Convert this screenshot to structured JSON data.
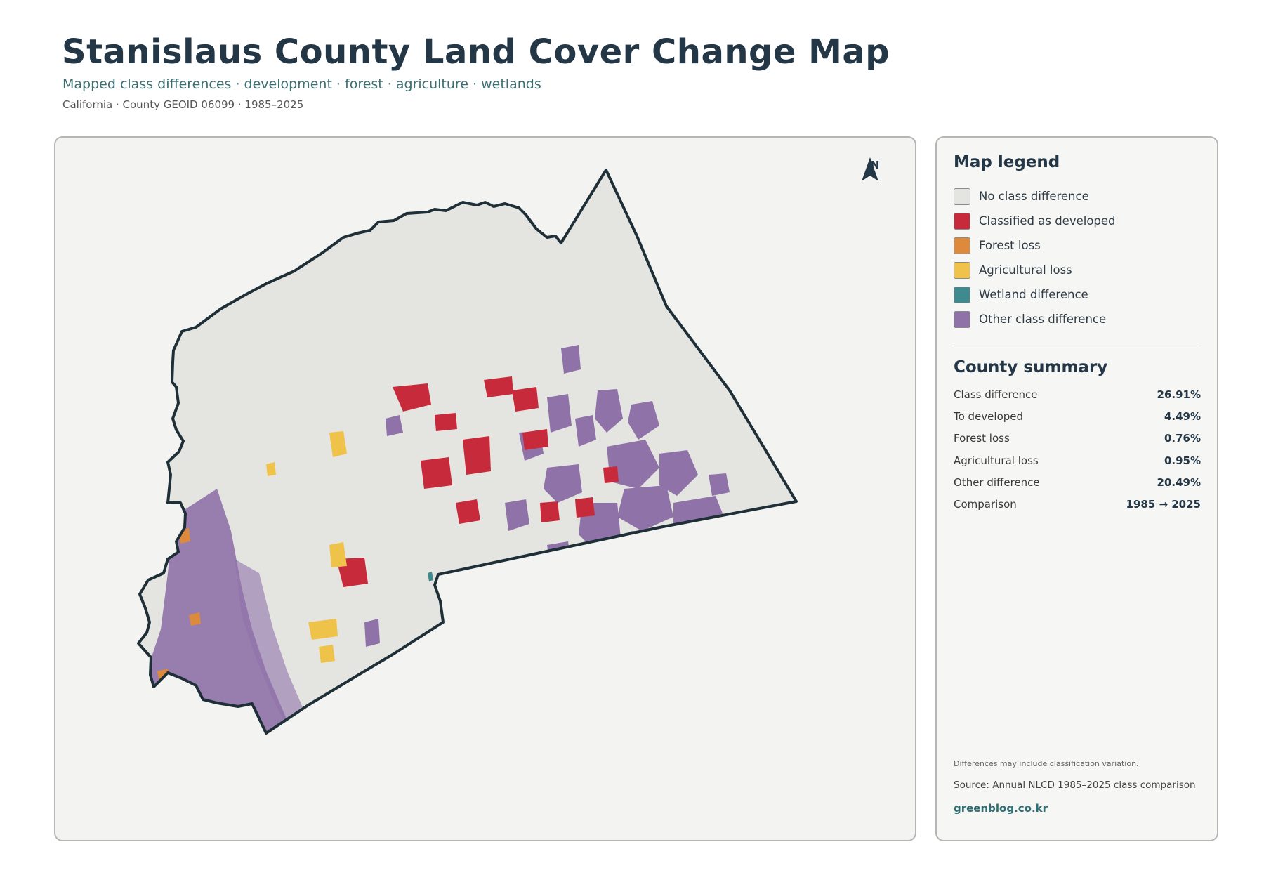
{
  "header": {
    "title": "Stanislaus County Land Cover Change Map",
    "subtitle": "Mapped class differences · development · forest · agriculture · wetlands",
    "meta": "California · County GEOID 06099 · 1985–2025"
  },
  "map": {
    "north_label": "N",
    "colors": {
      "no_change": "#e4e5e1",
      "developed": "#c72a3a",
      "forest_loss": "#dd8a3c",
      "agricultural_loss": "#efc24a",
      "wetland": "#3f8a8f",
      "other": "#8f72a8",
      "outline": "#1f2f38"
    }
  },
  "legend": {
    "title": "Map legend",
    "items": [
      {
        "label": "No class difference",
        "color": "#e4e5e1"
      },
      {
        "label": "Classified as developed",
        "color": "#c72a3a"
      },
      {
        "label": "Forest loss",
        "color": "#dd8a3c"
      },
      {
        "label": "Agricultural loss",
        "color": "#efc24a"
      },
      {
        "label": "Wetland difference",
        "color": "#3f8a8f"
      },
      {
        "label": "Other class difference",
        "color": "#8f72a8"
      }
    ]
  },
  "summary": {
    "title": "County summary",
    "rows": [
      {
        "label": "Class difference",
        "value": "26.91%"
      },
      {
        "label": "To developed",
        "value": "4.49%"
      },
      {
        "label": "Forest loss",
        "value": "0.76%"
      },
      {
        "label": "Agricultural loss",
        "value": "0.95%"
      },
      {
        "label": "Other difference",
        "value": "20.49%"
      },
      {
        "label": "Comparison",
        "value": "1985 → 2025"
      }
    ]
  },
  "footer": {
    "note": "Differences may include classification variation.",
    "source": "Source: Annual NLCD 1985–2025 class comparison",
    "site": "greenblog.co.kr"
  }
}
